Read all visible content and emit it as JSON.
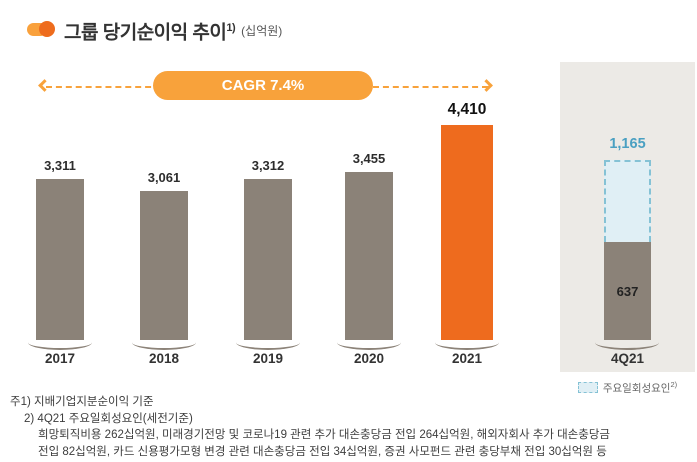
{
  "header": {
    "title": "그룹 당기순이익 추이",
    "title_sup": "1)",
    "unit": "(십억원)"
  },
  "chart_data": [
    {
      "type": "bar",
      "title": "그룹 당기순이익 추이 (십억원)",
      "categories": [
        "2017",
        "2018",
        "2019",
        "2020",
        "2021"
      ],
      "values": [
        3311,
        3061,
        3312,
        3455,
        4410
      ],
      "value_labels": [
        "3,311",
        "3,061",
        "3,312",
        "3,455",
        "4,410"
      ],
      "highlight_index": 4,
      "cagr": "CAGR 7.4%",
      "ylim": [
        0,
        4600
      ],
      "unit": "십억원",
      "bar_color": "#8b8278",
      "highlight_color": "#ee6b1e",
      "accent_color": "#f8a23b"
    },
    {
      "type": "bar",
      "subtype": "stacked",
      "categories": [
        "4Q21"
      ],
      "base_value": 637,
      "base_label": "637",
      "onetime_value": 528,
      "total_value": 1165,
      "total_label": "1,165",
      "legend_label": "주요일회성요인",
      "legend_sup": "2)",
      "bar_color": "#8b8278",
      "onetime_fill": "#e0eff5",
      "onetime_border": "#85c2d5",
      "total_label_color": "#4aa0c2",
      "panel_bg": "#eceae6"
    }
  ],
  "footnotes": {
    "line1": "주1) 지배기업지분순이익 기준",
    "line2": "2) 4Q21 주요일회성요인(세전기준)",
    "line3": "희망퇴직비용 262십억원, 미래경기전망 및 코로나19 관련 추가 대손충당금 전입 264십억원, 해외자회사 추가 대손충당금",
    "line4": "전입 82십억원, 카드 신용평가모형 변경 관련 대손충당금 전입 34십억원, 증권 사모펀드 관련 충당부채 전입 30십억원 등"
  }
}
